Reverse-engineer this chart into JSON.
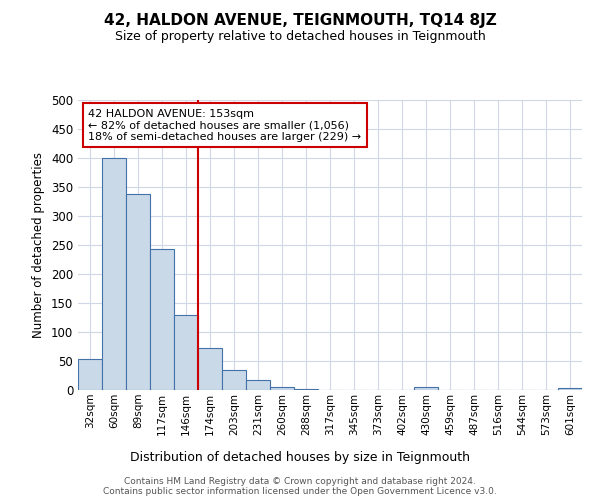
{
  "title": "42, HALDON AVENUE, TEIGNMOUTH, TQ14 8JZ",
  "subtitle": "Size of property relative to detached houses in Teignmouth",
  "xlabel": "Distribution of detached houses by size in Teignmouth",
  "ylabel": "Number of detached properties",
  "footer_line1": "Contains HM Land Registry data © Crown copyright and database right 2024.",
  "footer_line2": "Contains public sector information licensed under the Open Government Licence v3.0.",
  "bin_labels": [
    "32sqm",
    "60sqm",
    "89sqm",
    "117sqm",
    "146sqm",
    "174sqm",
    "203sqm",
    "231sqm",
    "260sqm",
    "288sqm",
    "317sqm",
    "345sqm",
    "373sqm",
    "402sqm",
    "430sqm",
    "459sqm",
    "487sqm",
    "516sqm",
    "544sqm",
    "573sqm",
    "601sqm"
  ],
  "bar_values": [
    53,
    400,
    338,
    243,
    130,
    72,
    35,
    18,
    5,
    1,
    0,
    0,
    0,
    0,
    5,
    0,
    0,
    0,
    0,
    0,
    3
  ],
  "bar_color": "#c9d9e8",
  "bar_edge_color": "#4472a8",
  "annotation_line1": "42 HALDON AVENUE: 153sqm",
  "annotation_line2": "← 82% of detached houses are smaller (1,056)",
  "annotation_line3": "18% of semi-detached houses are larger (229) →",
  "annotation_box_edge_color": "#cc0000",
  "vertical_line_color": "#cc0000",
  "vertical_line_x": 4.5,
  "ylim": [
    0,
    500
  ],
  "yticks": [
    0,
    50,
    100,
    150,
    200,
    250,
    300,
    350,
    400,
    450,
    500
  ],
  "background_color": "#ffffff",
  "grid_color": "#d0d8e8",
  "title_fontsize": 11,
  "subtitle_fontsize": 9
}
